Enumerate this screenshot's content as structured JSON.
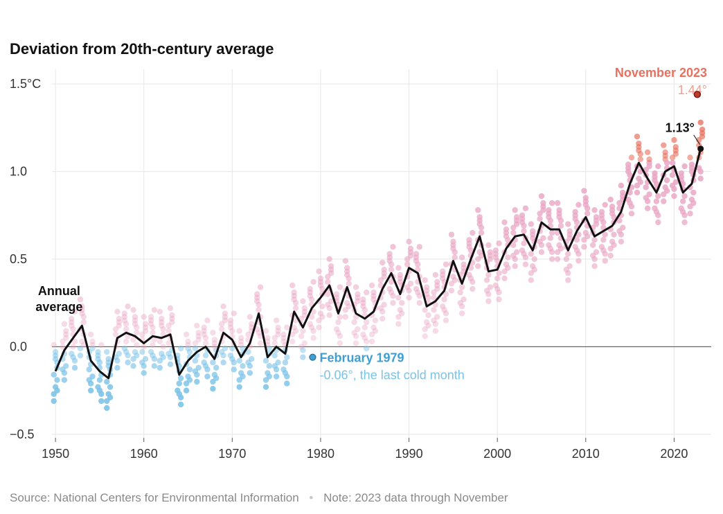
{
  "footer": {
    "source": "Source: National Centers for Environmental Information",
    "separator": "•",
    "note": "Note: 2023 data through November"
  },
  "colors": {
    "cold": "#7cc3e8",
    "cold_strong": "#3f9fd0",
    "warm": "#e9a6c4",
    "hot": "#e8705e",
    "highlight": "#c0392b",
    "line": "#111111",
    "grid": "#e6e6e6",
    "zero_line": "#666666"
  },
  "chart_data": {
    "type": "line",
    "title": "Deviation from 20th-century average",
    "xlabel": "",
    "ylabel": "",
    "xlim": [
      1949.6,
      2024.2
    ],
    "ylim": [
      -0.52,
      1.56
    ],
    "grid": true,
    "x_ticks": [
      1950,
      1960,
      1970,
      1980,
      1990,
      2000,
      2010,
      2020
    ],
    "y_ticks": [
      {
        "value": 1.5,
        "label": "1.5°C"
      },
      {
        "value": 1.0,
        "label": "1.0"
      },
      {
        "value": 0.5,
        "label": "0.5"
      },
      {
        "value": 0.0,
        "label": "0.0"
      },
      {
        "value": -0.5,
        "label": "−0.5"
      }
    ],
    "series": [
      {
        "name": "Annual average",
        "style": "line",
        "x": [
          1950,
          1951,
          1952,
          1953,
          1954,
          1955,
          1956,
          1957,
          1958,
          1959,
          1960,
          1961,
          1962,
          1963,
          1964,
          1965,
          1966,
          1967,
          1968,
          1969,
          1970,
          1971,
          1972,
          1973,
          1974,
          1975,
          1976,
          1977,
          1978,
          1979,
          1980,
          1981,
          1982,
          1983,
          1984,
          1985,
          1986,
          1987,
          1988,
          1989,
          1990,
          1991,
          1992,
          1993,
          1994,
          1995,
          1996,
          1997,
          1998,
          1999,
          2000,
          2001,
          2002,
          2003,
          2004,
          2005,
          2006,
          2007,
          2008,
          2009,
          2010,
          2011,
          2012,
          2013,
          2014,
          2015,
          2016,
          2017,
          2018,
          2019,
          2020,
          2021,
          2022,
          2023
        ],
        "y": [
          -0.14,
          -0.02,
          0.05,
          0.12,
          -0.08,
          -0.14,
          -0.18,
          0.05,
          0.08,
          0.06,
          0.02,
          0.06,
          0.05,
          0.07,
          -0.16,
          -0.08,
          -0.03,
          0.0,
          -0.07,
          0.08,
          0.04,
          -0.06,
          0.02,
          0.19,
          -0.06,
          0.0,
          -0.04,
          0.2,
          0.11,
          0.22,
          0.28,
          0.35,
          0.19,
          0.34,
          0.19,
          0.16,
          0.2,
          0.33,
          0.42,
          0.3,
          0.45,
          0.42,
          0.23,
          0.26,
          0.32,
          0.49,
          0.36,
          0.5,
          0.63,
          0.43,
          0.44,
          0.56,
          0.63,
          0.64,
          0.55,
          0.71,
          0.67,
          0.67,
          0.55,
          0.66,
          0.74,
          0.63,
          0.66,
          0.69,
          0.77,
          0.93,
          1.05,
          0.96,
          0.88,
          1.0,
          1.03,
          0.88,
          0.93,
          1.13
        ]
      },
      {
        "name": "Monthly",
        "style": "scatter",
        "note": "Monthly anomalies plotted as dots around each year's annual average",
        "offsets": [
          -0.13,
          0.09,
          -0.05,
          0.15,
          -0.09,
          0.02,
          -0.17,
          0.11,
          0.05,
          -0.02,
          0.07,
          -0.11
        ]
      }
    ],
    "annotations": [
      {
        "key": "annual_label",
        "lines": [
          "Annual",
          "average"
        ],
        "x": 1953,
        "y": 0.12
      },
      {
        "key": "cold_month",
        "title": "February 1979",
        "subtitle": "-0.06°, the last cold month",
        "x": 1979.1,
        "y": -0.06
      },
      {
        "key": "latest_month",
        "title": "November 2023",
        "subtitle": "1.44°",
        "x": 2023.8,
        "y": 1.44
      },
      {
        "key": "latest_annual",
        "title": "1.13°",
        "x": 2023,
        "y": 1.13
      }
    ]
  }
}
